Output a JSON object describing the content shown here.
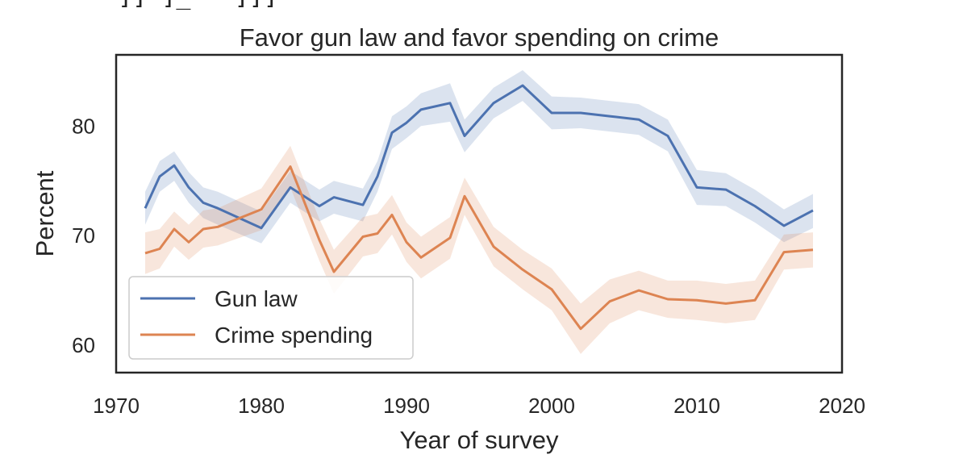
{
  "chart_data": {
    "type": "line",
    "title": "Favor gun law and favor spending on crime",
    "xlabel": "Year of survey",
    "ylabel": "Percent",
    "xlim": [
      1970,
      2020
    ],
    "ylim": [
      57.5,
      86.5
    ],
    "xticks": [
      1970,
      1980,
      1990,
      2000,
      2010,
      2020
    ],
    "yticks": [
      60,
      70,
      80
    ],
    "grid": false,
    "legend": "lower left",
    "series": [
      {
        "name": "Gun law",
        "color": "#4c72b0",
        "x": [
          1972,
          1973,
          1974,
          1975,
          1976,
          1977,
          1980,
          1982,
          1984,
          1985,
          1987,
          1988,
          1989,
          1990,
          1991,
          1993,
          1994,
          1996,
          1998,
          2000,
          2002,
          2004,
          2006,
          2008,
          2010,
          2012,
          2014,
          2016,
          2018
        ],
        "y": [
          72.5,
          75.4,
          76.4,
          74.4,
          73.0,
          72.5,
          70.7,
          74.4,
          72.7,
          73.5,
          72.8,
          75.4,
          79.4,
          80.3,
          81.5,
          82.1,
          79.1,
          82.1,
          83.7,
          81.2,
          81.2,
          80.9,
          80.6,
          79.1,
          74.4,
          74.2,
          72.7,
          70.9,
          72.3
        ],
        "low": [
          71.0,
          74.0,
          75.0,
          73.0,
          71.6,
          71.0,
          69.3,
          73.0,
          71.3,
          72.0,
          71.3,
          74.0,
          77.9,
          78.9,
          80.0,
          80.4,
          77.6,
          80.7,
          82.3,
          79.7,
          79.8,
          79.5,
          79.2,
          77.7,
          72.8,
          72.7,
          71.2,
          69.4,
          70.7
        ],
        "high": [
          74.0,
          76.8,
          77.7,
          75.8,
          74.4,
          74.0,
          72.2,
          75.9,
          74.2,
          75.0,
          74.3,
          76.8,
          80.9,
          81.8,
          83.0,
          83.9,
          80.6,
          83.5,
          85.1,
          82.7,
          82.6,
          82.3,
          82.0,
          80.6,
          76.0,
          75.7,
          74.2,
          72.4,
          73.8
        ]
      },
      {
        "name": "Crime spending",
        "color": "#dd8452",
        "x": [
          1972,
          1973,
          1974,
          1975,
          1976,
          1977,
          1980,
          1982,
          1984,
          1985,
          1987,
          1988,
          1989,
          1990,
          1991,
          1993,
          1994,
          1996,
          1998,
          2000,
          2002,
          2004,
          2006,
          2008,
          2010,
          2012,
          2014,
          2016,
          2018
        ],
        "y": [
          68.4,
          68.8,
          70.6,
          69.4,
          70.6,
          70.8,
          72.4,
          76.3,
          69.6,
          66.7,
          69.9,
          70.2,
          71.9,
          69.4,
          68.0,
          69.8,
          73.6,
          69.0,
          66.9,
          65.1,
          61.5,
          64.0,
          65.0,
          64.2,
          64.1,
          63.8,
          64.1,
          68.5,
          68.7
        ],
        "low": [
          66.5,
          67.0,
          69.0,
          67.8,
          68.9,
          69.1,
          70.5,
          74.4,
          67.7,
          64.7,
          68.1,
          68.4,
          70.1,
          67.6,
          66.1,
          67.9,
          71.9,
          67.2,
          65.1,
          63.2,
          59.2,
          62.0,
          63.2,
          62.5,
          62.3,
          62.0,
          62.3,
          66.9,
          67.1
        ],
        "high": [
          70.3,
          70.6,
          72.2,
          71.0,
          72.3,
          72.5,
          74.3,
          78.2,
          71.5,
          68.7,
          71.7,
          72.0,
          73.7,
          71.2,
          69.9,
          71.7,
          75.3,
          70.8,
          68.7,
          67.0,
          63.8,
          66.0,
          66.8,
          65.9,
          65.9,
          65.6,
          65.9,
          70.1,
          70.3
        ]
      }
    ]
  }
}
